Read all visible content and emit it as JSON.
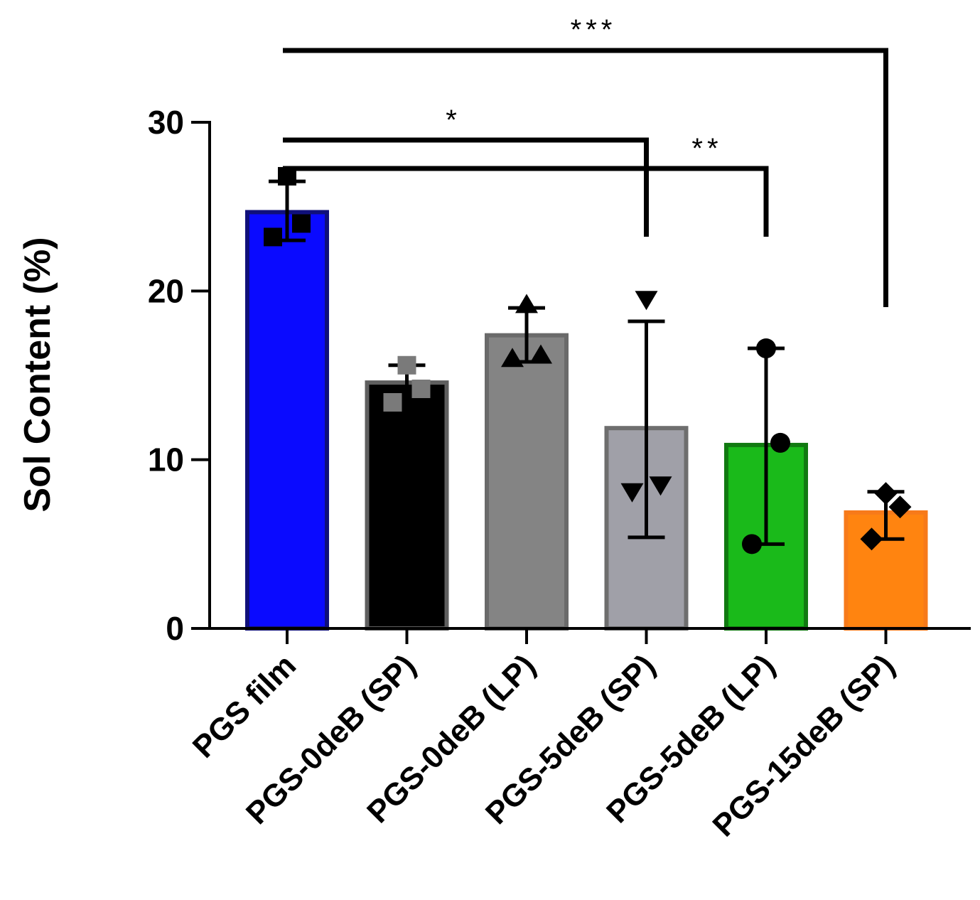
{
  "chart_data": {
    "type": "bar",
    "title": "",
    "xlabel": "",
    "ylabel": "Sol Content (%)",
    "ylim": [
      0,
      30
    ],
    "yticks": [
      0,
      10,
      20,
      30
    ],
    "categories": [
      "PGS film",
      "PGS-0deB (SP)",
      "PGS-0deB (LP)",
      "PGS-5deB (SP)",
      "PGS-5deB (LP)",
      "PGS-15deB (SP)"
    ],
    "values": [
      24.8,
      14.7,
      17.5,
      12.0,
      11.0,
      7.0
    ],
    "error": [
      {
        "low": 23.0,
        "high": 26.5
      },
      {
        "low": 13.7,
        "high": 15.6
      },
      {
        "low": 15.8,
        "high": 19.0
      },
      {
        "low": 5.4,
        "high": 18.2
      },
      {
        "low": 5.0,
        "high": 16.6
      },
      {
        "low": 5.3,
        "high": 8.1
      }
    ],
    "points": [
      [
        26.8,
        24.0,
        23.2
      ],
      [
        15.6,
        14.2,
        13.4
      ],
      [
        19.2,
        16.2,
        16.0
      ],
      [
        19.5,
        8.5,
        8.1
      ],
      [
        16.6,
        11.0,
        5.0
      ],
      [
        8.0,
        7.2,
        5.3
      ]
    ],
    "markers": [
      "square",
      "square",
      "triangle-up",
      "triangle-down",
      "circle",
      "diamond"
    ],
    "colors": {
      "fill": [
        "#0a0aff",
        "#000000",
        "#848484",
        "#a0a0a8",
        "#1aba1a",
        "#ff8410"
      ],
      "edge": [
        "#10107a",
        "#5f5f5f",
        "#6a6a6a",
        "#6e6e6e",
        "#117a11",
        "#f77a1a"
      ],
      "marker": [
        "#000000",
        "#7a7a7a",
        "#000000",
        "#000000",
        "#000000",
        "#000000"
      ]
    },
    "significance": [
      {
        "from": 0,
        "to": 3,
        "label": "*"
      },
      {
        "from": 0,
        "to": 4,
        "label": "**"
      },
      {
        "from": 0,
        "to": 5,
        "label": "***"
      }
    ]
  }
}
